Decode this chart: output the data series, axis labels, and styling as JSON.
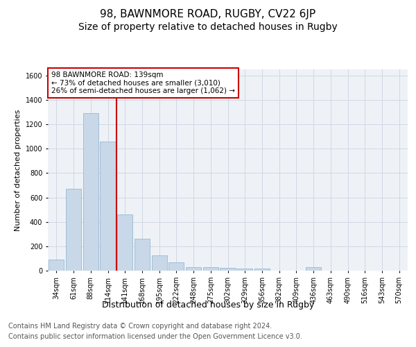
{
  "title": "98, BAWNMORE ROAD, RUGBY, CV22 6JP",
  "subtitle": "Size of property relative to detached houses in Rugby",
  "xlabel": "Distribution of detached houses by size in Rugby",
  "ylabel": "Number of detached properties",
  "categories": [
    "34sqm",
    "61sqm",
    "88sqm",
    "114sqm",
    "141sqm",
    "168sqm",
    "195sqm",
    "222sqm",
    "248sqm",
    "275sqm",
    "302sqm",
    "329sqm",
    "356sqm",
    "382sqm",
    "409sqm",
    "436sqm",
    "463sqm",
    "490sqm",
    "516sqm",
    "543sqm",
    "570sqm"
  ],
  "values": [
    90,
    670,
    1290,
    1060,
    460,
    260,
    125,
    70,
    30,
    30,
    20,
    15,
    15,
    0,
    0,
    30,
    0,
    0,
    0,
    0,
    0
  ],
  "bar_color": "#c8d8e8",
  "bar_edge_color": "#8ab0cc",
  "vline_color": "#cc0000",
  "annotation_box_text": "98 BAWNMORE ROAD: 139sqm\n← 73% of detached houses are smaller (3,010)\n26% of semi-detached houses are larger (1,062) →",
  "annotation_box_color": "#cc0000",
  "annotation_box_bg": "#ffffff",
  "ylim": [
    0,
    1650
  ],
  "yticks": [
    0,
    200,
    400,
    600,
    800,
    1000,
    1200,
    1400,
    1600
  ],
  "grid_color": "#d0d8e4",
  "bg_color": "#eef2f7",
  "footer_line1": "Contains HM Land Registry data © Crown copyright and database right 2024.",
  "footer_line2": "Contains public sector information licensed under the Open Government Licence v3.0.",
  "title_fontsize": 11,
  "subtitle_fontsize": 10,
  "xlabel_fontsize": 9,
  "ylabel_fontsize": 8,
  "tick_fontsize": 7,
  "annotation_fontsize": 7.5,
  "footer_fontsize": 7
}
